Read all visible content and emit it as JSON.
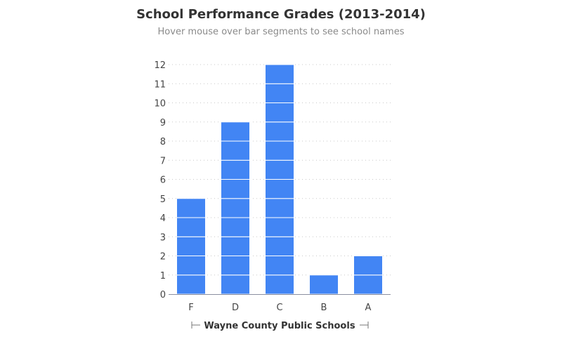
{
  "chart_data": {
    "type": "bar",
    "title": "School Performance Grades (2013-2014)",
    "subtitle": "Hover mouse over bar segments to see school names",
    "xlabel": "Wayne County Public Schools",
    "ylabel": "",
    "categories": [
      "F",
      "D",
      "C",
      "B",
      "A"
    ],
    "values": [
      5,
      9,
      12,
      1,
      2
    ],
    "ylim": [
      0,
      12
    ],
    "yticks": [
      0,
      1,
      2,
      3,
      4,
      5,
      6,
      7,
      8,
      9,
      10,
      11,
      12
    ],
    "grid": "horizontal dotted",
    "stacked_unit_segments": true,
    "colors": {
      "bar": "#4285f4",
      "segment_line": "#ffffff",
      "grid": "#c8c8c8",
      "axis": "#8a8fa0"
    }
  }
}
